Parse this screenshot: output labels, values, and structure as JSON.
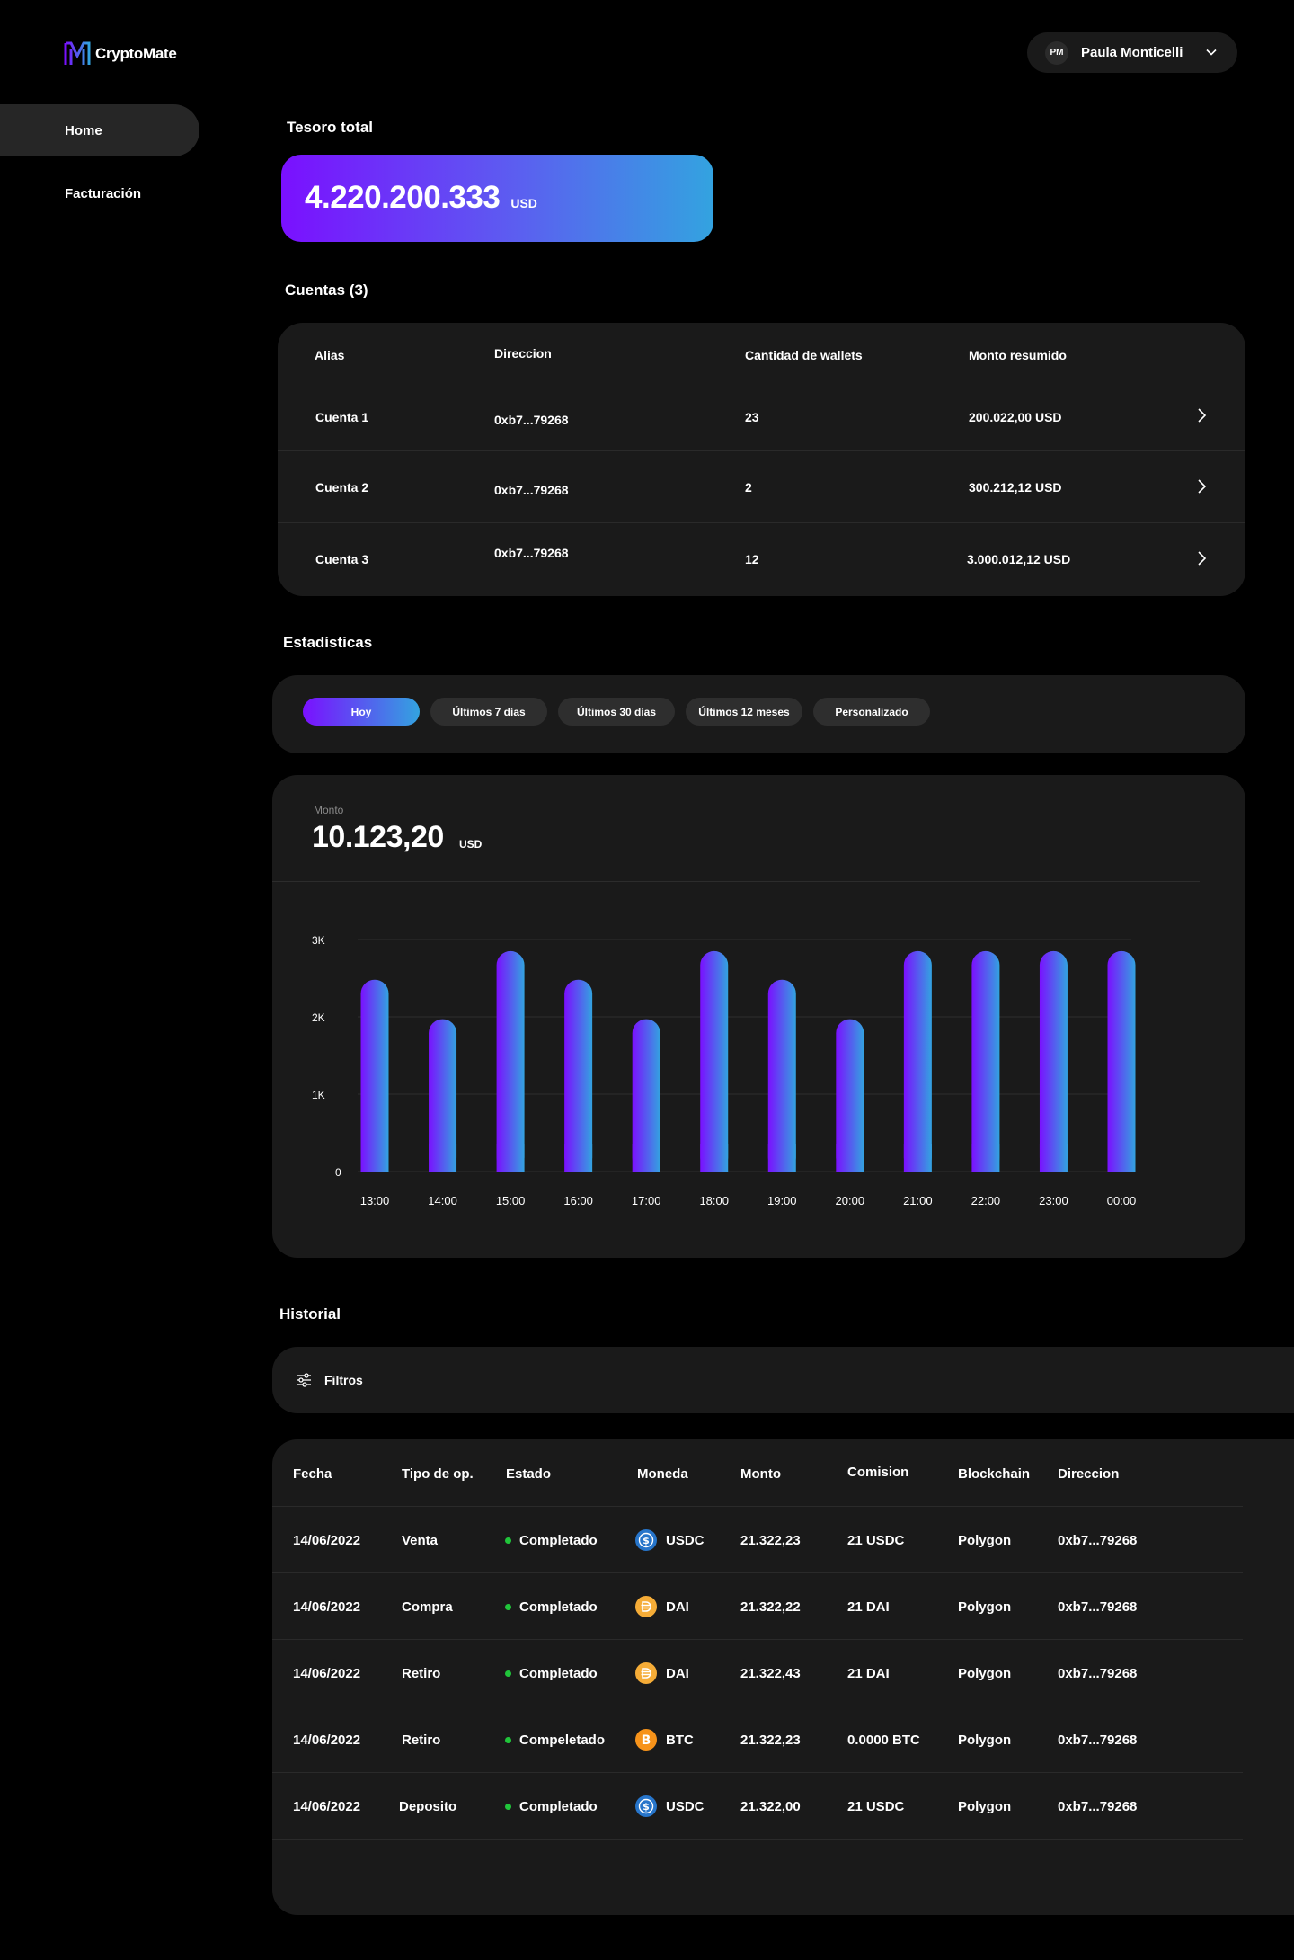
{
  "brand": {
    "name": "CryptoMate",
    "logo_icon": "cryptomate-logo-icon"
  },
  "user": {
    "initials": "PM",
    "name": "Paula Monticelli"
  },
  "sidebar": {
    "items": [
      {
        "label": "Home",
        "active": true
      },
      {
        "label": "Facturación",
        "active": false
      }
    ]
  },
  "treasury": {
    "title": "Tesoro total",
    "value": "4.220.200.333",
    "unit": "USD"
  },
  "accounts": {
    "title": "Cuentas (3)",
    "columns": [
      "Alias",
      "Direccion",
      "Cantidad de wallets",
      "Monto resumido"
    ],
    "rows": [
      {
        "alias": "Cuenta 1",
        "address": "0xb7...79268",
        "wallets": "23",
        "amount": "200.022,00 USD"
      },
      {
        "alias": "Cuenta 2",
        "address": "0xb7...79268",
        "wallets": "2",
        "amount": "300.212,12 USD"
      },
      {
        "alias": "Cuenta 3",
        "address": "0xb7...79268",
        "wallets": "12",
        "amount": "3.000.012,12 USD"
      }
    ]
  },
  "stats": {
    "title": "Estadísticas",
    "filters": [
      "Hoy",
      "Últimos 7 días",
      "Últimos 30 días",
      "Últimos 12 meses",
      "Personalizado"
    ],
    "active_filter": "Hoy",
    "amount_label": "Monto",
    "amount_value": "10.123,20",
    "amount_unit": "USD"
  },
  "chart_data": {
    "type": "bar",
    "categories": [
      "13:00",
      "14:00",
      "15:00",
      "16:00",
      "17:00",
      "18:00",
      "19:00",
      "20:00",
      "21:00",
      "22:00",
      "23:00",
      "00:00"
    ],
    "values": [
      2480,
      1970,
      2850,
      2480,
      1970,
      2850,
      2480,
      1970,
      2850,
      2850,
      2850,
      2850
    ],
    "y_ticks": [
      "0",
      "1K",
      "2K",
      "3K"
    ],
    "ylim": [
      0,
      3000
    ],
    "grid": true,
    "bar_gradient": [
      "#7a10ff",
      "#33a3e0"
    ]
  },
  "history": {
    "title": "Historial",
    "filter_label": "Filtros",
    "columns": [
      "Fecha",
      "Tipo de op.",
      "Estado",
      "Moneda",
      "Monto",
      "Comision",
      "Blockchain",
      "Direccion"
    ],
    "rows": [
      {
        "date": "14/06/2022",
        "type": "Venta",
        "status": "Completado",
        "coin": "USDC",
        "coin_icon": "usdc-icon",
        "amount": "21.322,23",
        "fee": "21 USDC",
        "chain": "Polygon",
        "address": "0xb7...79268"
      },
      {
        "date": "14/06/2022",
        "type": "Compra",
        "status": "Completado",
        "coin": "DAI",
        "coin_icon": "dai-icon",
        "amount": "21.322,22",
        "fee": "21 DAI",
        "chain": "Polygon",
        "address": "0xb7...79268"
      },
      {
        "date": "14/06/2022",
        "type": "Retiro",
        "status": "Completado",
        "coin": "DAI",
        "coin_icon": "dai-icon",
        "amount": "21.322,43",
        "fee": "21 DAI",
        "chain": "Polygon",
        "address": "0xb7...79268"
      },
      {
        "date": "14/06/2022",
        "type": "Retiro",
        "status": "Compeletado",
        "coin": "BTC",
        "coin_icon": "btc-icon",
        "amount": "21.322,23",
        "fee": "0.0000 BTC",
        "chain": "Polygon",
        "address": "0xb7...79268"
      },
      {
        "date": "14/06/2022",
        "type": "Deposito",
        "status": "Completado",
        "coin": "USDC",
        "coin_icon": "usdc-icon",
        "amount": "21.322,00",
        "fee": "21 USDC",
        "chain": "Polygon",
        "address": "0xb7...79268"
      }
    ]
  },
  "colors": {
    "accent_start": "#7a10ff",
    "accent_end": "#33a3e0",
    "panel": "#1a1a1a",
    "status_ok": "#20c53a"
  }
}
